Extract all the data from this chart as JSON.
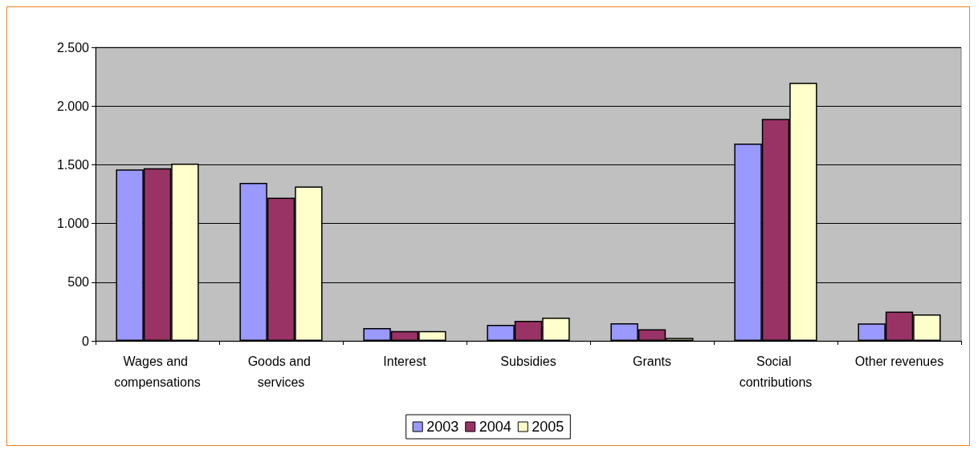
{
  "chart_data": {
    "type": "bar",
    "categories": [
      "Wages and compensations",
      "Goods and services",
      "Interest",
      "Subsidies",
      "Grants",
      "Social contributions",
      "Other revenues"
    ],
    "series": [
      {
        "name": "2003",
        "color": "#9999ff",
        "values": [
          1460,
          1345,
          110,
          137,
          151,
          1680,
          149
        ]
      },
      {
        "name": "2004",
        "color": "#993366",
        "values": [
          1470,
          1220,
          83,
          171,
          99,
          1890,
          250
        ]
      },
      {
        "name": "2005",
        "color": "#ffffcc",
        "values": [
          1510,
          1315,
          83,
          198,
          25,
          2198,
          225
        ]
      }
    ],
    "ylim": [
      0,
      2500
    ],
    "yticks": [
      0,
      {
        "value": 500,
        "label": "500"
      },
      {
        "value": 1000,
        "label": "1.000"
      },
      {
        "value": 1500,
        "label": "1.500"
      },
      {
        "value": 2000,
        "label": "2.000"
      },
      {
        "value": 2500,
        "label": "2.500"
      }
    ],
    "grid": "y",
    "legend": "bottom"
  }
}
